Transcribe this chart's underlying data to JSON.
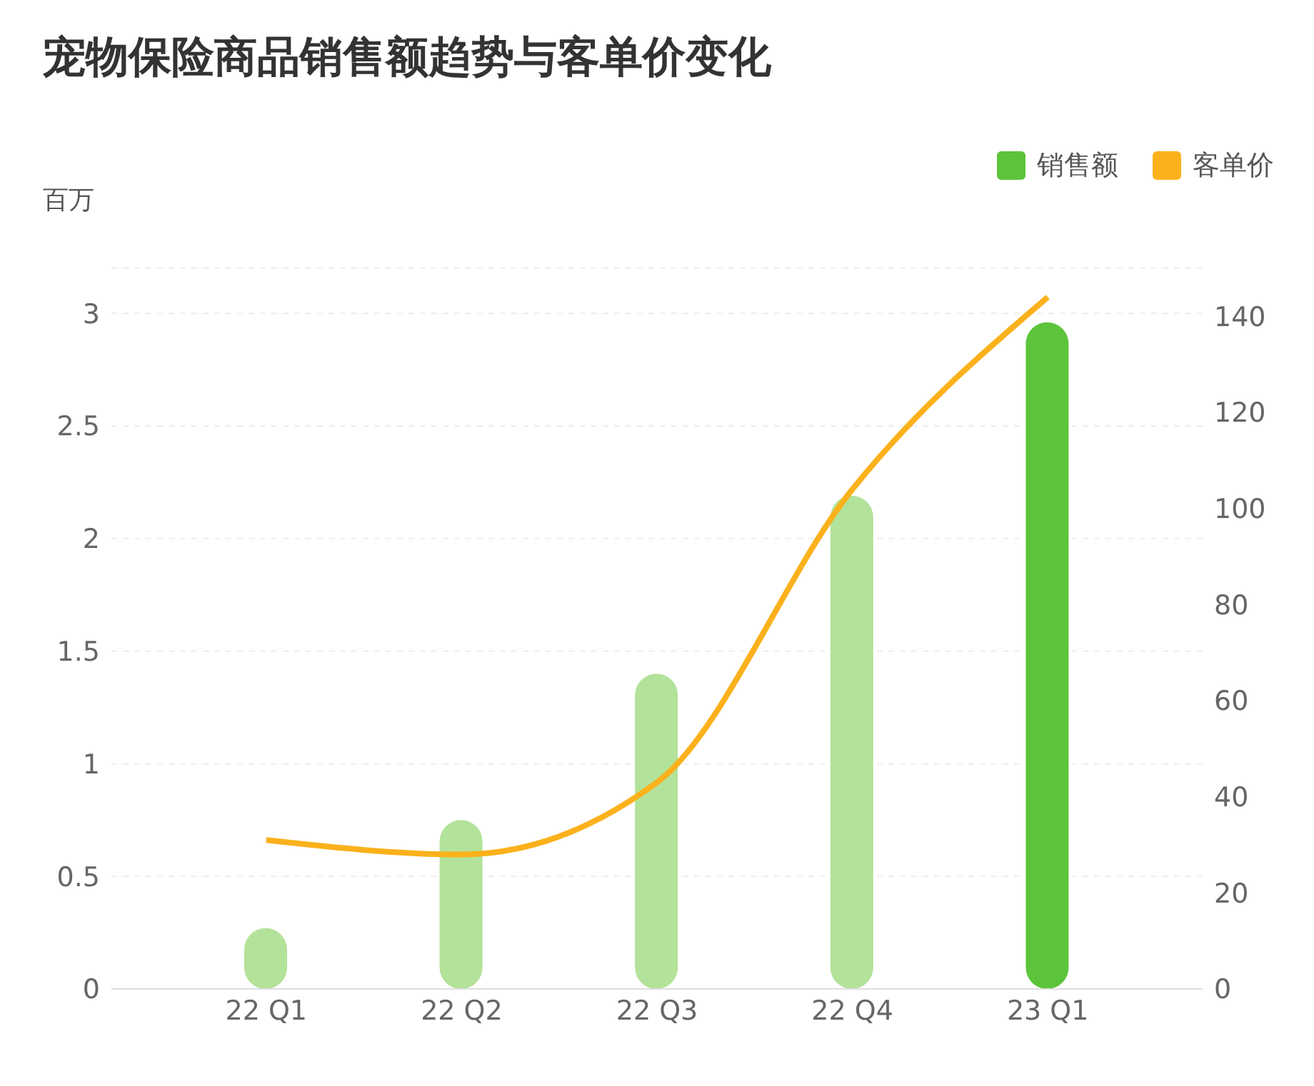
{
  "chart_data": {
    "type": "bar",
    "title": "宠物保险商品销售额趋势与客单价变化",
    "ylabel": "百万",
    "categories": [
      "22 Q1",
      "22 Q2",
      "22 Q3",
      "22 Q4",
      "23 Q1"
    ],
    "series": [
      {
        "name": "销售额",
        "color": "#5cc43a",
        "colors": [
          "#b3e29a",
          "#b3e29a",
          "#b3e29a",
          "#b3e29a",
          "#5cc43a"
        ],
        "values": [
          0.27,
          0.75,
          1.4,
          2.19,
          2.96
        ]
      },
      {
        "name": "客单价",
        "type": "line",
        "axis": "y2",
        "color": "#fbb11b",
        "values": [
          31,
          28,
          43,
          104,
          144
        ]
      }
    ],
    "ylim": [
      0,
      3.2
    ],
    "yticks": [
      0,
      0.5,
      1,
      1.5,
      2,
      2.5,
      3
    ],
    "y2lim": [
      0,
      150
    ],
    "y2ticks": [
      0,
      20,
      40,
      60,
      80,
      100,
      120,
      140
    ],
    "grid": "y",
    "legend": "top right",
    "marker": "none"
  }
}
